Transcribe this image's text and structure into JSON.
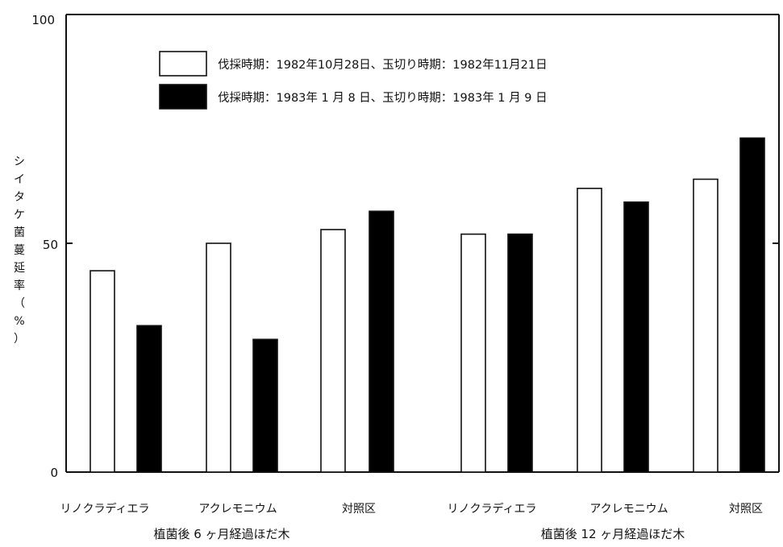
{
  "chart_data": {
    "type": "bar",
    "ylabel": "シイタケ菌蔓延率（%）",
    "ylim": [
      0,
      100
    ],
    "yticks": [
      "0",
      "50",
      "100"
    ],
    "groups": [
      {
        "label": "植菌後 6 ヶ月経過ほだ木",
        "categories": [
          "リノクラディエラ",
          "アクレモニウム",
          "対照区"
        ]
      },
      {
        "label": "植菌後 12 ヶ月経過ほだ木",
        "categories": [
          "リノクラディエラ",
          "アクレモニウム",
          "対照区"
        ]
      }
    ],
    "series": [
      {
        "name": "伐採時期：1982年10月28日、玉切り時期：1982年11月21日",
        "color": "#ffffff",
        "values": [
          44,
          50,
          53,
          52,
          62,
          64
        ]
      },
      {
        "name": "伐採時期：1983年 1 月 8 日、玉切り時期：1983年 1 月 9 日",
        "color": "#000000",
        "values": [
          32,
          29,
          57,
          52,
          59,
          73
        ]
      }
    ],
    "legend_position": "top-right",
    "grid": false
  }
}
